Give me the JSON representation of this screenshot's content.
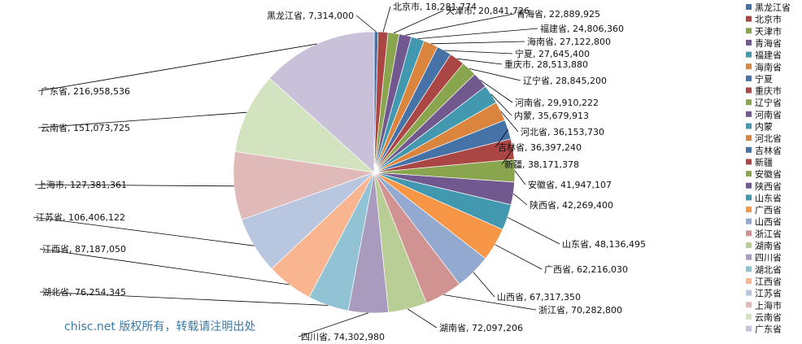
{
  "watermark": "chisc.net 版权所有，转载请注明出处",
  "chart_data": {
    "type": "pie",
    "title": "",
    "categories": [
      "黑龙江省",
      "北京市",
      "天津市",
      "青海省",
      "福建省",
      "海南省",
      "宁夏",
      "重庆市",
      "辽宁省",
      "河南省",
      "内蒙",
      "河北省",
      "吉林省",
      "新疆",
      "安徽省",
      "陕西省",
      "山东省",
      "广西省",
      "山西省",
      "浙江省",
      "湖南省",
      "四川省",
      "湖北省",
      "江西省",
      "江苏省",
      "上海市",
      "云南省",
      "广东省"
    ],
    "values": [
      7314000,
      18281774,
      20841726,
      22889925,
      24806360,
      27122800,
      27645400,
      28513880,
      28845200,
      29910222,
      35679913,
      36153730,
      36397240,
      38171378,
      41947107,
      42269400,
      48136495,
      62216030,
      67317350,
      70282800,
      72097206,
      74302980,
      76254345,
      87187050,
      106406122,
      127381361,
      151073725,
      216958536
    ],
    "labels": [
      "黑龙江省, 7,314,000",
      "北京市, 18,281,774",
      "天津市, 20,841,726",
      "青海省, 22,889,925",
      "福建省, 24,806,360",
      "海南省, 27,122,800",
      "宁夏, 27,645,400",
      "重庆市, 28,513,880",
      "辽宁省, 28,845,200",
      "河南省, 29,910,222",
      "内蒙, 35,679,913",
      "河北省, 36,153,730",
      "吉林省, 36,397,240",
      "新疆, 38,171,378",
      "安徽省, 41,947,107",
      "陕西省, 42,269,400",
      "山东省, 48,136,495",
      "广西省, 62,216,030",
      "山西省, 67,317,350",
      "浙江省, 70,282,800",
      "湖南省, 72,097,206",
      "四川省, 74,302,980",
      "湖北省, 76,254,345",
      "江西省, 87,187,050",
      "江苏省, 106,406,122",
      "上海市, 127,381,361",
      "云南省, 151,073,725",
      "广东省, 216,958,536"
    ],
    "colors": [
      "#4572A7",
      "#AA4643",
      "#89A54E",
      "#71588F",
      "#4198AF",
      "#DB843D",
      "#4572A7",
      "#AA4643",
      "#89A54E",
      "#71588F",
      "#4198AF",
      "#DB843D",
      "#4572A7",
      "#AA4643",
      "#89A54E",
      "#71588F",
      "#4198AF",
      "#F79646",
      "#93A9CF",
      "#D19392",
      "#B9CD96",
      "#A99BBD",
      "#91C3D5",
      "#F9B590",
      "#B9C6E0",
      "#E0B9B9",
      "#D3E2BF",
      "#C9C0DA"
    ],
    "legend_position": "right"
  }
}
